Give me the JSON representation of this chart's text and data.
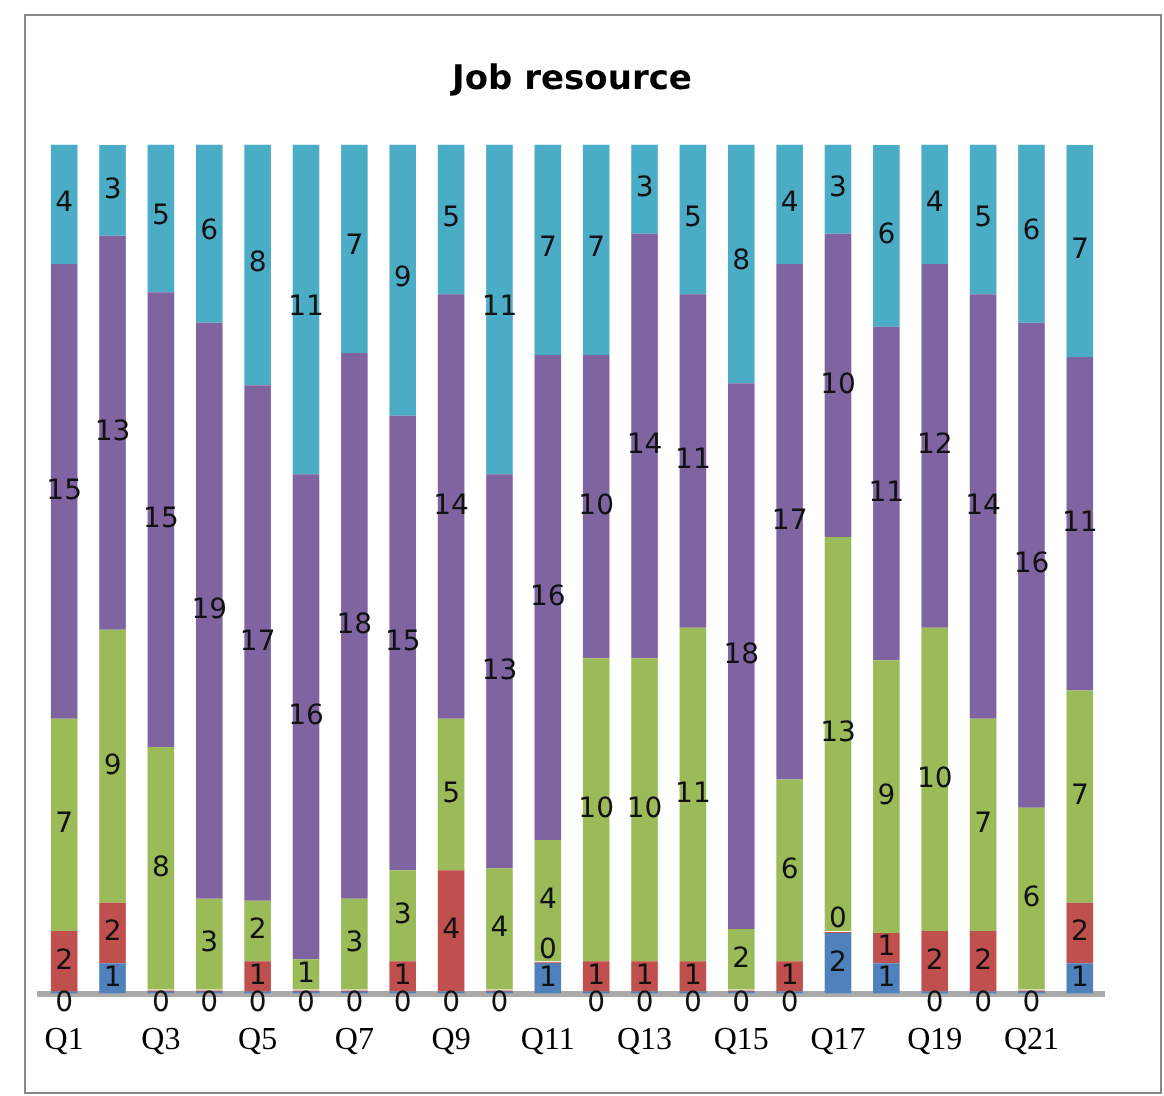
{
  "chart_data": {
    "type": "bar",
    "title": "Job resource",
    "stacked": true,
    "legend": false,
    "grid": false,
    "categories": [
      "Q1",
      null,
      "Q3",
      null,
      "Q5",
      null,
      "Q7",
      null,
      "Q9",
      null,
      "Q11",
      null,
      "Q13",
      null,
      "Q15",
      null,
      "Q17",
      null,
      "Q19",
      null,
      "Q21",
      null
    ],
    "series": [
      {
        "color": "#4f81bd",
        "values": [
          0,
          1,
          0,
          0,
          0,
          0,
          0,
          0,
          0,
          0,
          1,
          0,
          0,
          0,
          0,
          0,
          2,
          1,
          0,
          0,
          0,
          1
        ],
        "value_labels": [
          "0",
          "1",
          "0",
          "0",
          "0",
          "0",
          "0",
          "0",
          "0",
          "0",
          "1",
          "0",
          "0",
          "0",
          "0",
          "0",
          "2",
          "1",
          "0",
          "0",
          "0",
          "1"
        ]
      },
      {
        "color": "#c0504d",
        "values": [
          2,
          2,
          0,
          0,
          1,
          0,
          0,
          1,
          4,
          0,
          0,
          1,
          1,
          1,
          0,
          1,
          0,
          1,
          2,
          2,
          0,
          2
        ],
        "value_labels": [
          "2",
          "2",
          null,
          null,
          "1",
          null,
          null,
          "1",
          "4",
          null,
          "0",
          "1",
          "1",
          "1",
          null,
          "1",
          "0",
          "1",
          "2",
          "2",
          null,
          "2"
        ]
      },
      {
        "color": "#9bbb59",
        "values": [
          7,
          9,
          8,
          3,
          2,
          1,
          3,
          3,
          5,
          4,
          4,
          10,
          10,
          11,
          2,
          6,
          13,
          9,
          10,
          7,
          6,
          7
        ],
        "value_labels": [
          "7",
          "9",
          "8",
          "3",
          "2",
          "1",
          "3",
          "3",
          "5",
          "4",
          "4",
          "10",
          "10",
          "11",
          "2",
          "6",
          "13",
          "9",
          "10",
          "7",
          "6",
          "7"
        ]
      },
      {
        "color": "#8064a2",
        "values": [
          15,
          13,
          15,
          19,
          17,
          16,
          18,
          15,
          14,
          13,
          16,
          10,
          14,
          11,
          18,
          17,
          10,
          11,
          12,
          14,
          16,
          11
        ],
        "value_labels": [
          "15",
          "13",
          "15",
          "19",
          "17",
          "16",
          "18",
          "15",
          "14",
          "13",
          "16",
          "10",
          "14",
          "11",
          "18",
          "17",
          "10",
          "11",
          "12",
          "14",
          "16",
          "11"
        ]
      },
      {
        "color": "#4bacc6",
        "values": [
          4,
          3,
          5,
          6,
          8,
          11,
          7,
          9,
          5,
          11,
          7,
          7,
          3,
          5,
          8,
          4,
          3,
          6,
          4,
          5,
          6,
          7
        ],
        "value_labels": [
          "4",
          "3",
          "5",
          "6",
          "8",
          "11",
          "7",
          "9",
          "5",
          "11",
          "7",
          "7",
          "3",
          "5",
          "8",
          "4",
          "3",
          "6",
          "4",
          "5",
          "6",
          "7"
        ]
      }
    ]
  }
}
